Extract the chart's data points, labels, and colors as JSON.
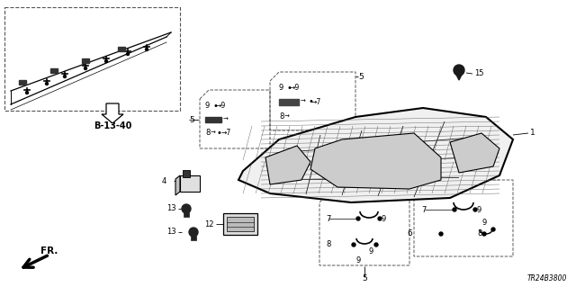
{
  "bg": "#ffffff",
  "lc": "#000000",
  "part_number": "TR24B3800",
  "ref_label": "B-13-40",
  "fw": 6.4,
  "fh": 3.19,
  "dpi": 100
}
